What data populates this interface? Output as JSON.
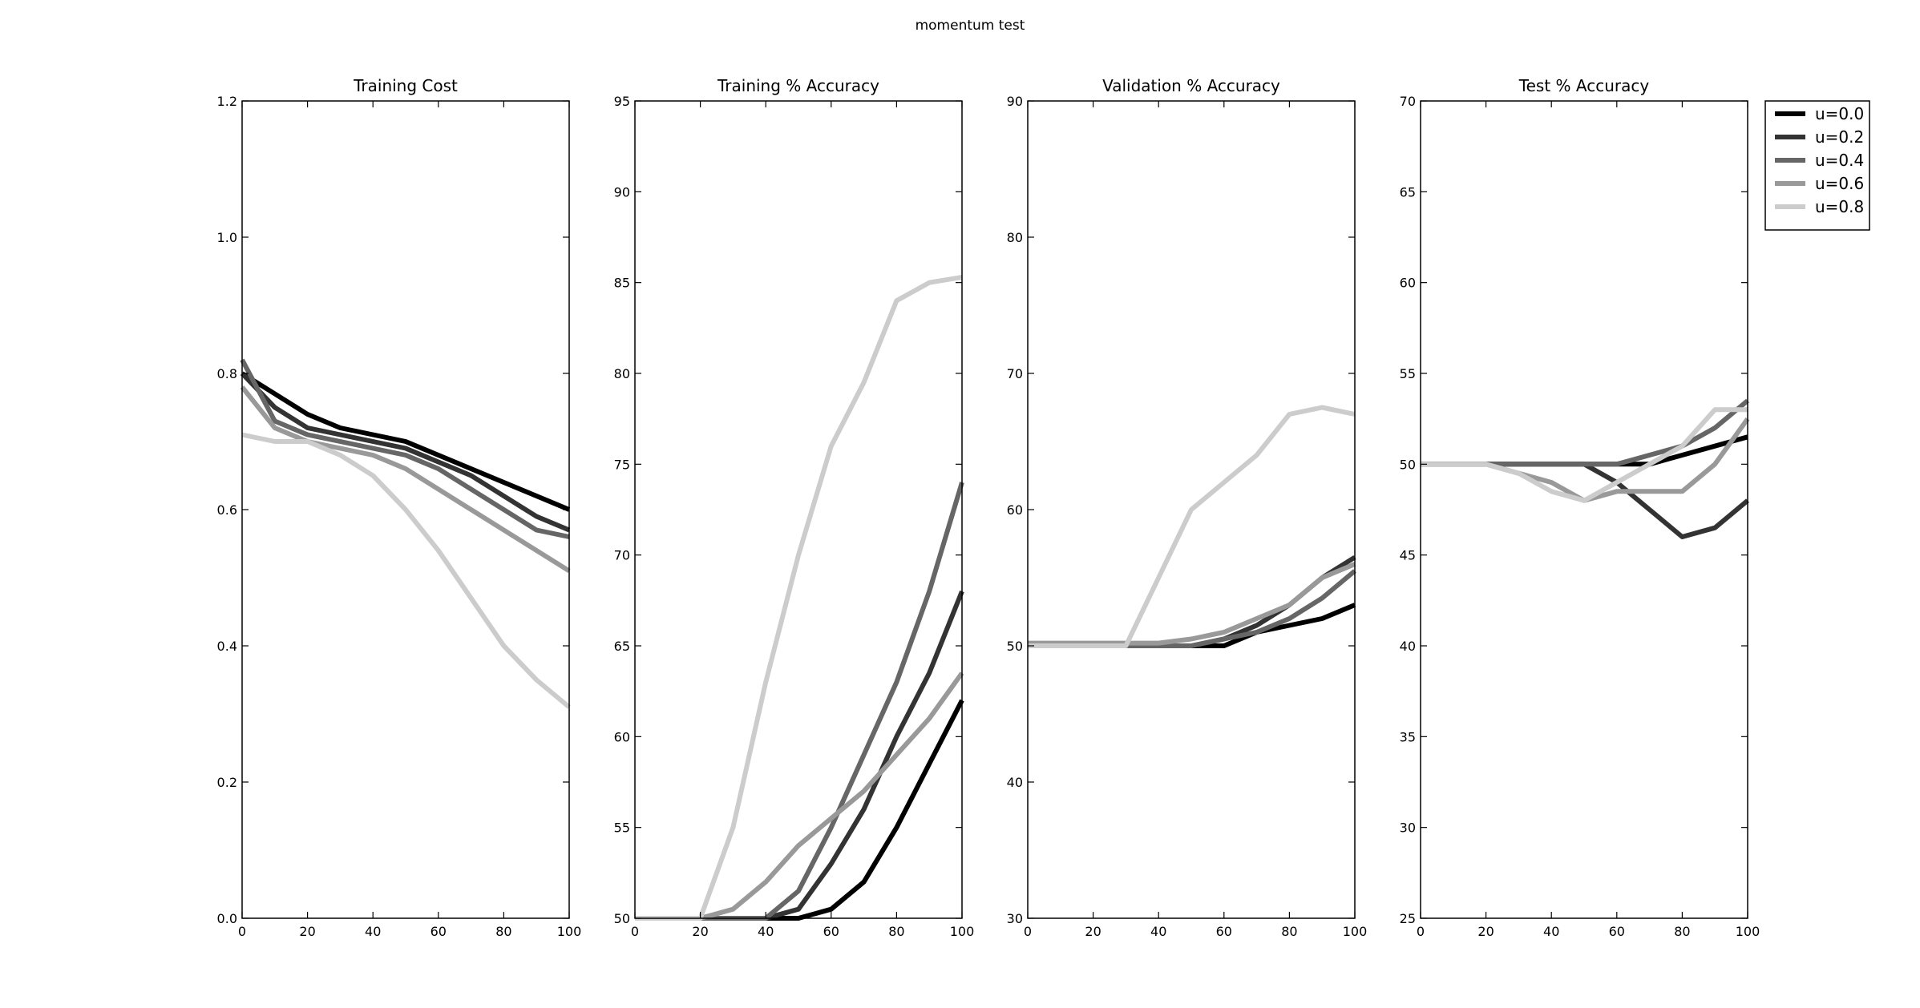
{
  "figure": {
    "suptitle": "momentum test"
  },
  "legend": {
    "placement": "outside-right",
    "entries": [
      {
        "label": "u=0.0",
        "color": "#000000"
      },
      {
        "label": "u=0.2",
        "color": "#333333"
      },
      {
        "label": "u=0.4",
        "color": "#666666"
      },
      {
        "label": "u=0.6",
        "color": "#999999"
      },
      {
        "label": "u=0.8",
        "color": "#cccccc"
      }
    ]
  },
  "chart_data": [
    {
      "type": "line",
      "title": "Training Cost",
      "xlabel": "",
      "ylabel": "",
      "xlim": [
        0,
        100
      ],
      "ylim": [
        0,
        1.2
      ],
      "xticks": [
        0,
        20,
        40,
        60,
        80,
        100
      ],
      "yticks": [
        "0.0",
        "0.2",
        "0.4",
        "0.6",
        "0.8",
        "1.0",
        "1.2"
      ],
      "grid": false,
      "x": [
        0,
        10,
        20,
        30,
        40,
        50,
        60,
        70,
        80,
        90,
        100
      ],
      "series": [
        {
          "color": "#000000",
          "values": [
            0.8,
            0.77,
            0.74,
            0.72,
            0.71,
            0.7,
            0.68,
            0.66,
            0.64,
            0.62,
            0.6
          ]
        },
        {
          "color": "#333333",
          "values": [
            0.8,
            0.75,
            0.72,
            0.71,
            0.7,
            0.69,
            0.67,
            0.65,
            0.62,
            0.59,
            0.57
          ]
        },
        {
          "color": "#666666",
          "values": [
            0.82,
            0.73,
            0.71,
            0.7,
            0.69,
            0.68,
            0.66,
            0.63,
            0.6,
            0.57,
            0.56
          ]
        },
        {
          "color": "#999999",
          "values": [
            0.78,
            0.72,
            0.7,
            0.69,
            0.68,
            0.66,
            0.63,
            0.6,
            0.57,
            0.54,
            0.51
          ]
        },
        {
          "color": "#cccccc",
          "values": [
            0.71,
            0.7,
            0.7,
            0.68,
            0.65,
            0.6,
            0.54,
            0.47,
            0.4,
            0.35,
            0.31
          ]
        }
      ]
    },
    {
      "type": "line",
      "title": "Training % Accuracy",
      "xlabel": "",
      "ylabel": "",
      "xlim": [
        0,
        100
      ],
      "ylim": [
        50,
        95
      ],
      "xticks": [
        0,
        20,
        40,
        60,
        80,
        100
      ],
      "yticks": [
        "50",
        "55",
        "60",
        "65",
        "70",
        "75",
        "80",
        "85",
        "90",
        "95"
      ],
      "grid": false,
      "x": [
        0,
        10,
        20,
        30,
        40,
        50,
        60,
        70,
        80,
        90,
        100
      ],
      "series": [
        {
          "color": "#000000",
          "values": [
            50,
            50,
            50,
            50,
            50,
            50,
            50.5,
            52,
            55,
            58.5,
            62
          ]
        },
        {
          "color": "#333333",
          "values": [
            50,
            50,
            50,
            50,
            50,
            50.5,
            53,
            56,
            60,
            63.5,
            68
          ]
        },
        {
          "color": "#666666",
          "values": [
            50,
            50,
            50,
            50,
            50,
            51.5,
            55,
            59,
            63,
            68,
            74
          ]
        },
        {
          "color": "#999999",
          "values": [
            50,
            50,
            50,
            50.5,
            52,
            54,
            55.5,
            57,
            59,
            61,
            63.5
          ]
        },
        {
          "color": "#cccccc",
          "values": [
            50,
            50,
            50,
            55,
            63,
            70,
            76,
            79.5,
            84,
            85,
            85.3
          ]
        }
      ]
    },
    {
      "type": "line",
      "title": "Validation % Accuracy",
      "xlabel": "",
      "ylabel": "",
      "xlim": [
        0,
        100
      ],
      "ylim": [
        30,
        90
      ],
      "xticks": [
        0,
        20,
        40,
        60,
        80,
        100
      ],
      "yticks": [
        "30",
        "40",
        "50",
        "60",
        "70",
        "80",
        "90"
      ],
      "grid": false,
      "x": [
        0,
        10,
        20,
        30,
        40,
        50,
        60,
        70,
        80,
        90,
        100
      ],
      "series": [
        {
          "color": "#000000",
          "values": [
            50,
            50,
            50,
            50,
            50,
            50,
            50,
            51,
            51.5,
            52,
            53
          ]
        },
        {
          "color": "#333333",
          "values": [
            50,
            50,
            50,
            50,
            50,
            50,
            50.5,
            51.5,
            53,
            55,
            56.5
          ]
        },
        {
          "color": "#666666",
          "values": [
            50,
            50,
            50,
            50,
            50,
            50,
            50.5,
            51,
            52,
            53.5,
            55.5
          ]
        },
        {
          "color": "#999999",
          "values": [
            50.2,
            50.2,
            50.2,
            50.2,
            50.2,
            50.5,
            51,
            52,
            53,
            55,
            56
          ]
        },
        {
          "color": "#cccccc",
          "values": [
            50,
            50,
            50,
            50,
            55,
            60,
            62,
            64,
            67,
            67.5,
            67
          ]
        }
      ]
    },
    {
      "type": "line",
      "title": "Test % Accuracy",
      "xlabel": "",
      "ylabel": "",
      "xlim": [
        0,
        100
      ],
      "ylim": [
        25,
        70
      ],
      "xticks": [
        0,
        20,
        40,
        60,
        80,
        100
      ],
      "yticks": [
        "25",
        "30",
        "35",
        "40",
        "45",
        "50",
        "55",
        "60",
        "65",
        "70"
      ],
      "grid": false,
      "x": [
        0,
        10,
        20,
        30,
        40,
        50,
        60,
        70,
        80,
        90,
        100
      ],
      "series": [
        {
          "color": "#000000",
          "values": [
            50,
            50,
            50,
            50,
            50,
            50,
            50,
            50,
            50.5,
            51,
            51.5
          ]
        },
        {
          "color": "#333333",
          "values": [
            50,
            50,
            50,
            50,
            50,
            50,
            49,
            47.5,
            46,
            46.5,
            48
          ]
        },
        {
          "color": "#666666",
          "values": [
            50,
            50,
            50,
            50,
            50,
            50,
            50,
            50.5,
            51,
            52,
            53.5
          ]
        },
        {
          "color": "#999999",
          "values": [
            50,
            50,
            50,
            49.5,
            49,
            48,
            48.5,
            48.5,
            48.5,
            50,
            52.5
          ]
        },
        {
          "color": "#cccccc",
          "values": [
            50,
            50,
            50,
            49.5,
            48.5,
            48,
            49,
            50,
            51,
            53,
            53
          ]
        }
      ]
    }
  ]
}
